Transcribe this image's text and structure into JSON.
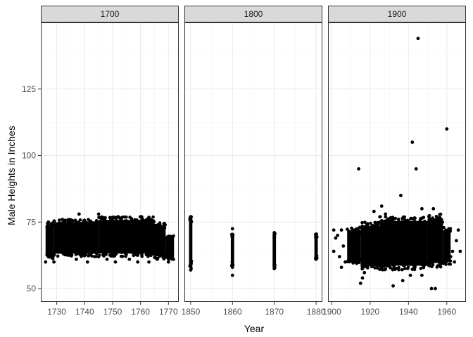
{
  "chart_data": {
    "type": "scatter",
    "xlabel": "Year",
    "ylabel": "Male Heights in Inches",
    "ylim": [
      45,
      150
    ],
    "y_ticks": [
      50,
      75,
      100,
      125
    ],
    "theme": "bw",
    "grid": true,
    "point_color": "#000000",
    "panel_border_color": "#333333",
    "strip_fill": "#d9d9d9",
    "grid_major_color": "#ebebeb",
    "grid_minor_color": "#f5f5f5",
    "facets": [
      {
        "strip": "1700",
        "xlim": [
          1724.3,
          1773.7
        ],
        "x_ticks": [
          1730,
          1740,
          1750,
          1760,
          1770
        ],
        "x_tick_labels": [
          "1730",
          "1740",
          "1750",
          "1760",
          "1770"
        ],
        "bands": [
          {
            "x": [
              1726,
              1729
            ],
            "y": [
              61,
              75
            ]
          },
          {
            "x": [
              1729,
              1745
            ],
            "y": [
              62,
              76
            ]
          },
          {
            "x": [
              1745,
              1765
            ],
            "y": [
              62,
              77
            ]
          },
          {
            "x": [
              1765,
              1769
            ],
            "y": [
              61,
              75
            ]
          },
          {
            "x": [
              1769,
              1772
            ],
            "y": [
              61,
              70
            ]
          }
        ],
        "points": [
          [
            1726,
            60
          ],
          [
            1727,
            62
          ],
          [
            1729,
            60
          ],
          [
            1737,
            61
          ],
          [
            1741,
            60
          ],
          [
            1745,
            62
          ],
          [
            1748,
            61
          ],
          [
            1751,
            60
          ],
          [
            1756,
            61
          ],
          [
            1759,
            60
          ],
          [
            1763,
            60
          ],
          [
            1766,
            61
          ],
          [
            1770,
            60
          ],
          [
            1745,
            78
          ],
          [
            1752,
            77
          ],
          [
            1738,
            78
          ],
          [
            1727,
            75
          ],
          [
            1732,
            76
          ],
          [
            1760,
            77
          ],
          [
            1768,
            72
          ],
          [
            1771,
            65
          ]
        ]
      },
      {
        "strip": "1800",
        "xlim": [
          1848.5,
          1881.5
        ],
        "x_ticks": [
          1850,
          1860,
          1870,
          1880
        ],
        "x_tick_labels": [
          "1850",
          "1860",
          "1870",
          "1880"
        ],
        "bands": [
          {
            "x": [
              1849.8,
              1850.2
            ],
            "y": [
              57.5,
              77
            ]
          },
          {
            "x": [
              1859.8,
              1860.2
            ],
            "y": [
              58,
              71
            ]
          },
          {
            "x": [
              1869.8,
              1870.2
            ],
            "y": [
              57.5,
              71
            ]
          },
          {
            "x": [
              1879.8,
              1880.2
            ],
            "y": [
              61,
              70.5
            ]
          }
        ],
        "points": [
          [
            1850,
            77
          ],
          [
            1850,
            57
          ],
          [
            1860,
            72.5
          ],
          [
            1860,
            55
          ],
          [
            1860,
            58
          ],
          [
            1870,
            71
          ],
          [
            1870,
            57.5
          ],
          [
            1880,
            70.5
          ],
          [
            1880,
            61
          ]
        ]
      },
      {
        "strip": "1900",
        "xlim": [
          1898,
          1970
        ],
        "x_ticks": [
          1900,
          1920,
          1940,
          1960
        ],
        "x_tick_labels": [
          "1900",
          "1920",
          "1940",
          "1960"
        ],
        "bands": [
          {
            "x": [
              1908,
              1915
            ],
            "y": [
              59,
              73
            ]
          },
          {
            "x": [
              1915,
              1925
            ],
            "y": [
              57,
              75
            ]
          },
          {
            "x": [
              1925,
              1950
            ],
            "y": [
              57,
              77
            ]
          },
          {
            "x": [
              1950,
              1958
            ],
            "y": [
              58,
              78
            ]
          },
          {
            "x": [
              1958,
              1962
            ],
            "y": [
              59,
              73
            ]
          }
        ],
        "points": [
          [
            1945,
            144
          ],
          [
            1960,
            110
          ],
          [
            1942,
            105
          ],
          [
            1914,
            95
          ],
          [
            1944,
            95
          ],
          [
            1936,
            85
          ],
          [
            1926,
            81
          ],
          [
            1922,
            79
          ],
          [
            1928,
            78
          ],
          [
            1947,
            80
          ],
          [
            1953,
            80
          ],
          [
            1901,
            72
          ],
          [
            1902,
            69
          ],
          [
            1904,
            62
          ],
          [
            1905,
            72
          ],
          [
            1906,
            66
          ],
          [
            1907,
            60
          ],
          [
            1901,
            64
          ],
          [
            1903,
            70
          ],
          [
            1905,
            58
          ],
          [
            1910,
            61
          ],
          [
            1915,
            52
          ],
          [
            1916,
            54
          ],
          [
            1917,
            56
          ],
          [
            1932,
            51
          ],
          [
            1937,
            53
          ],
          [
            1941,
            55
          ],
          [
            1947,
            55
          ],
          [
            1952,
            50
          ],
          [
            1954,
            50
          ],
          [
            1962,
            62
          ],
          [
            1963,
            64
          ],
          [
            1964,
            60
          ],
          [
            1965,
            68
          ],
          [
            1966,
            72
          ],
          [
            1967,
            64
          ]
        ]
      }
    ]
  }
}
